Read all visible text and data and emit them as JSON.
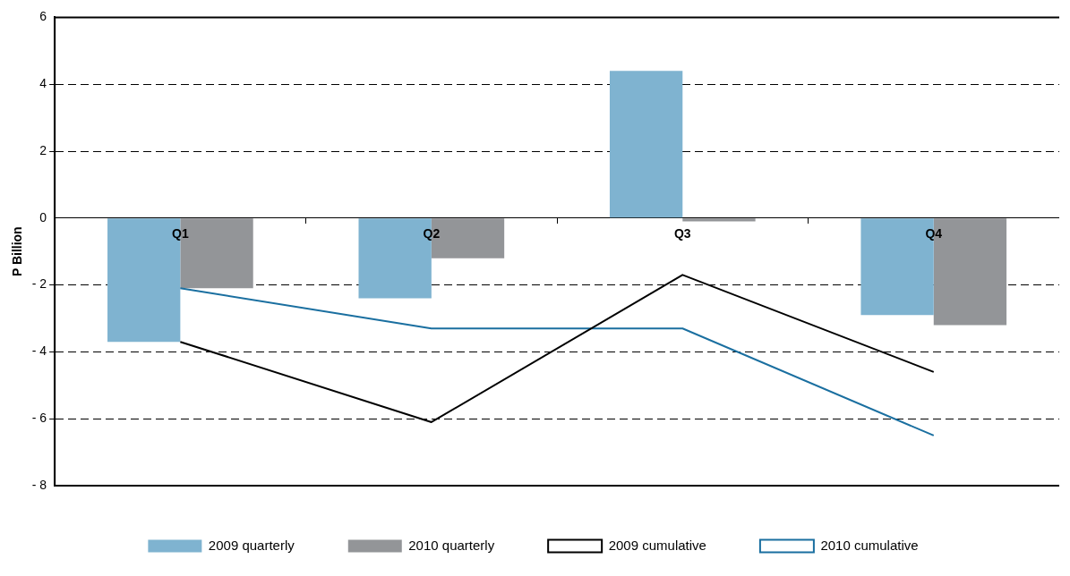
{
  "chart_data": {
    "type": "bar",
    "ylabel": "P Billion",
    "categories": [
      "Q1",
      "Q2",
      "Q3",
      "Q4"
    ],
    "series": [
      {
        "name": "2009 quarterly",
        "color": "#7fb3d0",
        "values": [
          -3.7,
          -2.4,
          4.4,
          -2.9
        ]
      },
      {
        "name": "2010 quarterly",
        "color": "#939598",
        "values": [
          -2.1,
          -1.2,
          -0.1,
          -3.2
        ]
      },
      {
        "name": "2009 cumulative",
        "type": "line",
        "color": "#000000",
        "values": [
          -3.7,
          -6.1,
          -1.7,
          -4.6
        ]
      },
      {
        "name": "2010 cumulative",
        "type": "line",
        "color": "#1a6fa0",
        "values": [
          -2.1,
          -3.3,
          -3.3,
          -6.5
        ]
      }
    ],
    "ylim": [
      -8,
      6
    ],
    "yticks": [
      {
        "value": -8,
        "label": "- 8"
      },
      {
        "value": -6,
        "label": "- 6"
      },
      {
        "value": -4,
        "label": "- 4"
      },
      {
        "value": -2,
        "label": "- 2"
      },
      0,
      2,
      4,
      6
    ],
    "grid": "y",
    "legend": "bottom",
    "marker": "none",
    "line_style": "solid"
  }
}
